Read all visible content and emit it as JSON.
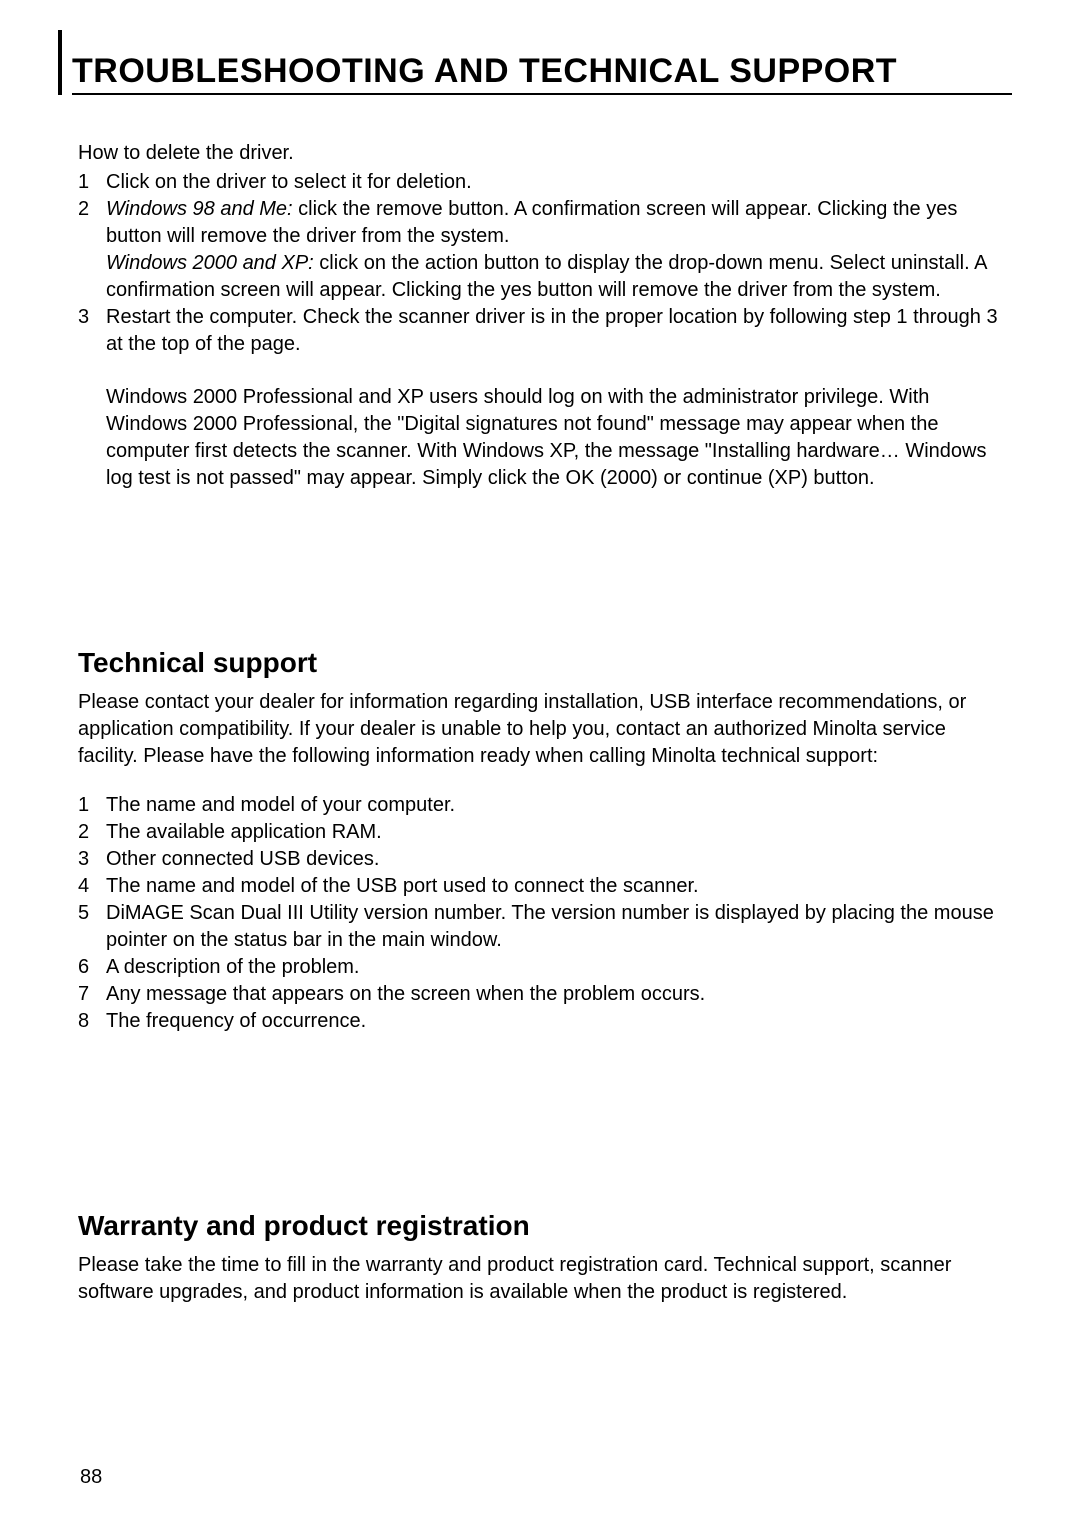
{
  "header": {
    "title": "TROUBLESHOOTING AND TECHNICAL SUPPORT"
  },
  "section1": {
    "intro": "How to delete the driver.",
    "steps": [
      {
        "num": "1",
        "text": "Click on the driver to select it for deletion."
      },
      {
        "num": "2",
        "italic1": "Windows 98 and Me:",
        "text1": " click the remove button. A confirmation screen will appear. Clicking the yes button will remove the driver from the system.",
        "italic2": "Windows 2000 and XP:",
        "text2": " click on the action button to display the drop-down menu. Select uninstall. A confirmation screen will appear. Clicking the yes button will remove the driver from the system."
      },
      {
        "num": "3",
        "text": "Restart the computer. Check the scanner driver is in the proper location by following step 1 through 3 at the top of the page."
      }
    ],
    "note": "Windows 2000 Professional and XP users should log on with the administrator privilege. With Windows 2000 Professional, the \"Digital signatures not found\" message may appear when the computer first detects the scanner. With Windows XP, the message \"Installing hardware… Windows log test is not passed\" may appear. Simply click the OK (2000) or continue (XP) button."
  },
  "section2": {
    "heading": "Technical support",
    "paragraph": "Please contact your dealer for information regarding installation, USB interface recommendations, or application compatibility. If your dealer is unable to help you, contact an authorized Minolta service facility. Please have the following information ready when calling Minolta technical support:",
    "items": [
      {
        "num": "1",
        "text": "The name and model of your computer."
      },
      {
        "num": "2",
        "text": "The available application RAM."
      },
      {
        "num": "3",
        "text": "Other connected USB devices."
      },
      {
        "num": "4",
        "text": "The name and model of the USB port used to connect the scanner."
      },
      {
        "num": "5",
        "text": "DiMAGE Scan Dual III Utility version number. The version number is displayed by placing the mouse pointer on the status bar in the main window."
      },
      {
        "num": "6",
        "text": "A description of the problem."
      },
      {
        "num": "7",
        "text": "Any message that appears on the screen when the problem occurs."
      },
      {
        "num": "8",
        "text": "The frequency of occurrence."
      }
    ]
  },
  "section3": {
    "heading": "Warranty and product registration",
    "paragraph": "Please take the time to fill in the warranty and product registration card. Technical support, scanner software upgrades, and product information is available when the product is registered."
  },
  "pageNumber": "88"
}
